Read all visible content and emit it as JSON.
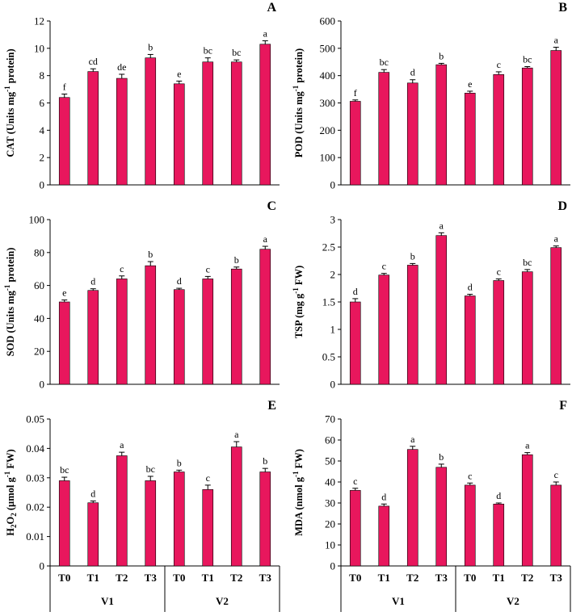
{
  "bar_color": "#E8175D",
  "x_categories": [
    "T0",
    "T1",
    "T2",
    "T3",
    "T0",
    "T1",
    "T2",
    "T3"
  ],
  "x_groups": [
    "V1",
    "V2"
  ],
  "chart_data": [
    {
      "type": "bar",
      "panel": "A",
      "ylabel_parts": [
        [
          "CAT (Units mg",
          "normal"
        ],
        [
          "-1",
          "super"
        ],
        [
          " protein)",
          "normal"
        ]
      ],
      "ylim": [
        0,
        12
      ],
      "yticks": [
        "0",
        "2",
        "4",
        "6",
        "8",
        "10",
        "12"
      ],
      "values": [
        6.4,
        8.3,
        7.8,
        9.3,
        7.4,
        9.0,
        9.0,
        10.3
      ],
      "errors": [
        0.25,
        0.2,
        0.3,
        0.25,
        0.2,
        0.3,
        0.15,
        0.25
      ],
      "letters": [
        "f",
        "cd",
        "de",
        "b",
        "e",
        "bc",
        "bc",
        "a"
      ]
    },
    {
      "type": "bar",
      "panel": "B",
      "ylabel_parts": [
        [
          "POD (Units mg",
          "normal"
        ],
        [
          "-1",
          "super"
        ],
        [
          " protein)",
          "normal"
        ]
      ],
      "ylim": [
        0,
        600
      ],
      "yticks": [
        "0",
        "100",
        "200",
        "300",
        "400",
        "500",
        "600"
      ],
      "values": [
        306,
        412,
        373,
        440,
        336,
        404,
        428,
        492
      ],
      "errors": [
        5,
        10,
        12,
        5,
        7,
        10,
        5,
        12
      ],
      "letters": [
        "f",
        "bc",
        "d",
        "b",
        "e",
        "c",
        "bc",
        "a"
      ]
    },
    {
      "type": "bar",
      "panel": "C",
      "ylabel_parts": [
        [
          "SOD (Units mg",
          "normal"
        ],
        [
          "-1",
          "super"
        ],
        [
          " protein)",
          "normal"
        ]
      ],
      "ylim": [
        0,
        100
      ],
      "yticks": [
        "0",
        "20",
        "40",
        "60",
        "80",
        "100"
      ],
      "values": [
        50,
        57,
        64,
        72,
        57.5,
        64,
        70,
        82
      ],
      "errors": [
        1.2,
        1.0,
        1.8,
        2.5,
        0.8,
        1.5,
        1.2,
        1.8
      ],
      "letters": [
        "e",
        "d",
        "c",
        "b",
        "d",
        "c",
        "b",
        "a"
      ]
    },
    {
      "type": "bar",
      "panel": "D",
      "ylabel_parts": [
        [
          "TSP (mg g",
          "normal"
        ],
        [
          "-1",
          "super"
        ],
        [
          " FW)",
          "normal"
        ]
      ],
      "ylim": [
        0,
        3
      ],
      "yticks": [
        "0",
        "0.5",
        "1",
        "1.5",
        "2",
        "2.5",
        "3"
      ],
      "values": [
        1.5,
        1.99,
        2.17,
        2.71,
        1.61,
        1.89,
        2.05,
        2.49
      ],
      "errors": [
        0.06,
        0.03,
        0.03,
        0.05,
        0.03,
        0.03,
        0.04,
        0.03
      ],
      "letters": [
        "d",
        "c",
        "b",
        "a",
        "d",
        "c",
        "bc",
        "a"
      ]
    },
    {
      "type": "bar",
      "panel": "E",
      "ylabel_parts": [
        [
          "H",
          "normal"
        ],
        [
          "2",
          "sub"
        ],
        [
          "O",
          "normal"
        ],
        [
          "2",
          "sub"
        ],
        [
          " (µmol g",
          "normal"
        ],
        [
          "-1",
          "super"
        ],
        [
          " FW)",
          "normal"
        ]
      ],
      "ylim": [
        0,
        0.05
      ],
      "yticks": [
        "0",
        "0.01",
        "0.02",
        "0.03",
        "0.04",
        "0.05"
      ],
      "values": [
        0.029,
        0.0215,
        0.0375,
        0.029,
        0.032,
        0.026,
        0.0405,
        0.032
      ],
      "errors": [
        0.0012,
        0.0006,
        0.0012,
        0.0015,
        0.0006,
        0.0015,
        0.0018,
        0.0012
      ],
      "letters": [
        "bc",
        "d",
        "a",
        "bc",
        "b",
        "c",
        "a",
        "b"
      ]
    },
    {
      "type": "bar",
      "panel": "F",
      "ylabel_parts": [
        [
          "MDA (nmol g",
          "normal"
        ],
        [
          "-1",
          "super"
        ],
        [
          " FW)",
          "normal"
        ]
      ],
      "ylim": [
        0,
        70
      ],
      "yticks": [
        "0",
        "10",
        "20",
        "30",
        "40",
        "50",
        "60",
        "70"
      ],
      "values": [
        36,
        28.5,
        55.5,
        47,
        38.5,
        29.5,
        53,
        38.5
      ],
      "errors": [
        1.0,
        1.0,
        1.5,
        1.5,
        1.0,
        0.5,
        1.0,
        1.5
      ],
      "letters": [
        "c",
        "d",
        "a",
        "b",
        "c",
        "d",
        "a",
        "c"
      ]
    }
  ]
}
